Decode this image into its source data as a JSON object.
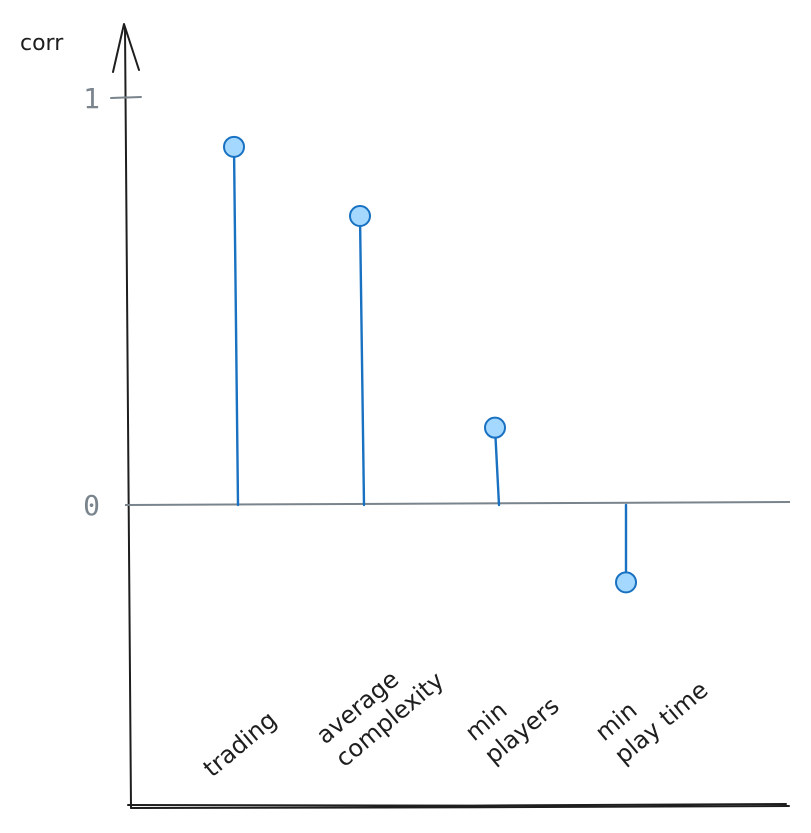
{
  "chart_data": {
    "type": "lollipop",
    "ylabel": "corr",
    "yticks": [
      {
        "value": 0,
        "label": "0"
      },
      {
        "value": 1,
        "label": "1"
      }
    ],
    "categories": [
      {
        "lines": [
          "trading"
        ]
      },
      {
        "lines": [
          "average",
          "complexity"
        ]
      },
      {
        "lines": [
          "min",
          "players"
        ]
      },
      {
        "lines": [
          "min",
          "play time"
        ]
      }
    ],
    "values": [
      0.88,
      0.71,
      0.19,
      -0.19
    ],
    "ylim": [
      -0.75,
      1.1
    ],
    "colors": {
      "stem": "#1971c2",
      "marker_fill": "#a5d8ff",
      "marker_stroke": "#1971c2",
      "axis": "#1e1e1e",
      "zero_line": "#7a848c"
    }
  }
}
